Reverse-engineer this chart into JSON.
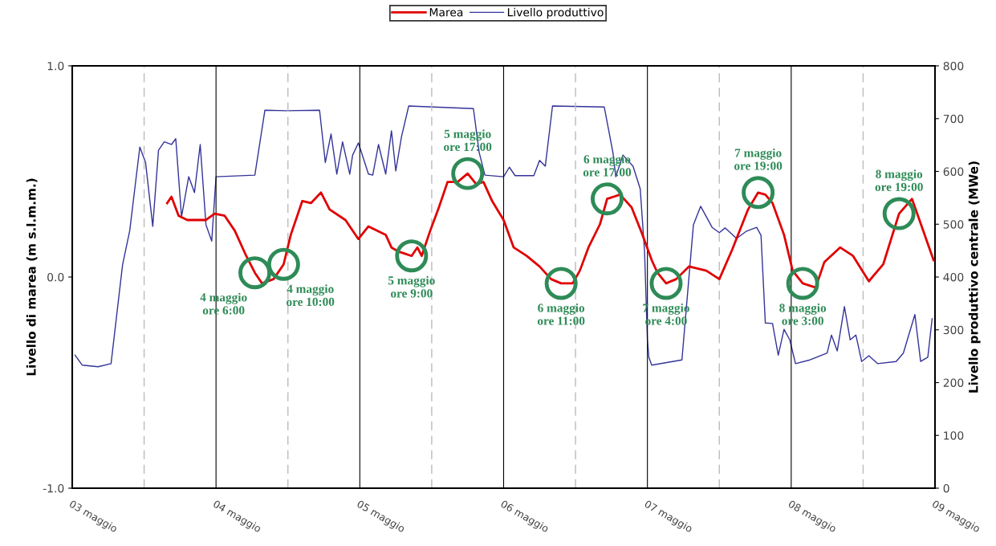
{
  "chart_data": {
    "type": "line",
    "xlim": [
      3,
      9
    ],
    "xticks": [
      {
        "value": 3,
        "label": "03 maggio"
      },
      {
        "value": 3.5,
        "label": null
      },
      {
        "value": 4,
        "label": "04 maggio"
      },
      {
        "value": 4.5,
        "label": null
      },
      {
        "value": 5,
        "label": "05 maggio"
      },
      {
        "value": 5.5,
        "label": null
      },
      {
        "value": 6,
        "label": "06 maggio"
      },
      {
        "value": 6.5,
        "label": null
      },
      {
        "value": 7,
        "label": "07 maggio"
      },
      {
        "value": 7.5,
        "label": null
      },
      {
        "value": 8,
        "label": "08 maggio"
      },
      {
        "value": 8.5,
        "label": null
      },
      {
        "value": 9,
        "label": "09 maggio"
      }
    ],
    "ylim": [
      -1,
      1
    ],
    "yticks": [
      {
        "value": -1,
        "label": "-1.0"
      },
      {
        "value": 0,
        "label": "0.0"
      },
      {
        "value": 1,
        "label": "1.0"
      }
    ],
    "y2lim": [
      0,
      800
    ],
    "y2ticks": [
      0,
      100,
      200,
      300,
      400,
      500,
      600,
      700,
      800
    ],
    "ylabel": "Livello di marea (m s.l.m.m.)",
    "y2label": "Livello produttivo centrale (MWe)",
    "grid": "x",
    "legend": "top",
    "series": [
      {
        "name": "Marea",
        "color": "#e00000",
        "x": [
          3.66,
          3.69,
          3.74,
          3.8,
          3.93,
          3.99,
          4.06,
          4.13,
          4.21,
          4.27,
          4.32,
          4.4,
          4.47,
          4.52,
          4.6,
          4.66,
          4.73,
          4.79,
          4.9,
          4.99,
          5.06,
          5.18,
          5.22,
          5.27,
          5.36,
          5.4,
          5.43,
          5.49,
          5.55,
          5.61,
          5.68,
          5.75,
          5.81,
          5.86,
          5.92,
          6.0,
          6.07,
          6.16,
          6.25,
          6.33,
          6.4,
          6.48,
          6.53,
          6.59,
          6.67,
          6.72,
          6.81,
          6.89,
          6.96,
          7.03,
          7.07,
          7.13,
          7.2,
          7.29,
          7.41,
          7.5,
          7.59,
          7.7,
          7.77,
          7.82,
          7.87,
          7.95,
          8.01,
          8.08,
          8.17,
          8.23,
          8.34,
          8.43,
          8.54,
          8.64,
          8.75,
          8.84,
          8.99
        ],
        "values": [
          0.35,
          0.38,
          0.29,
          0.27,
          0.27,
          0.3,
          0.29,
          0.22,
          0.1,
          0.02,
          -0.03,
          -0.01,
          0.06,
          0.2,
          0.36,
          0.35,
          0.4,
          0.32,
          0.27,
          0.18,
          0.24,
          0.2,
          0.14,
          0.12,
          0.1,
          0.14,
          0.1,
          0.22,
          0.33,
          0.45,
          0.45,
          0.49,
          0.44,
          0.45,
          0.36,
          0.27,
          0.14,
          0.1,
          0.05,
          -0.01,
          -0.03,
          -0.03,
          0.03,
          0.14,
          0.25,
          0.37,
          0.39,
          0.33,
          0.21,
          0.08,
          0.02,
          -0.03,
          -0.01,
          0.05,
          0.03,
          -0.01,
          0.13,
          0.32,
          0.4,
          0.39,
          0.35,
          0.2,
          0.03,
          -0.03,
          -0.05,
          0.07,
          0.14,
          0.1,
          -0.02,
          0.06,
          0.3,
          0.37,
          0.08
        ]
      },
      {
        "name": "Livello produttivo",
        "color": "#333399",
        "axis": "y2",
        "x": [
          3.02,
          3.07,
          3.18,
          3.27,
          3.35,
          3.4,
          3.47,
          3.51,
          3.56,
          3.6,
          3.64,
          3.69,
          3.72,
          3.76,
          3.81,
          3.85,
          3.89,
          3.93,
          3.97,
          4.0,
          4.27,
          4.34,
          4.49,
          4.72,
          4.76,
          4.8,
          4.84,
          4.88,
          4.93,
          4.95,
          4.99,
          5.06,
          5.09,
          5.13,
          5.18,
          5.22,
          5.25,
          5.29,
          5.34,
          5.51,
          5.79,
          5.83,
          5.87,
          6.0,
          6.04,
          6.08,
          6.21,
          6.25,
          6.29,
          6.34,
          6.7,
          6.76,
          6.78,
          6.83,
          6.9,
          6.95,
          6.98,
          7.0,
          7.01,
          7.03,
          7.24,
          7.32,
          7.37,
          7.45,
          7.5,
          7.54,
          7.62,
          7.69,
          7.76,
          7.79,
          7.82,
          7.87,
          7.91,
          7.95,
          7.99,
          8.03,
          8.13,
          8.25,
          8.28,
          8.32,
          8.37,
          8.41,
          8.45,
          8.49,
          8.54,
          8.6,
          8.73,
          8.78,
          8.86,
          8.9,
          8.95,
          8.98
        ],
        "values": [
          252,
          233,
          230,
          236,
          423,
          488,
          646,
          617,
          496,
          640,
          656,
          651,
          662,
          514,
          590,
          560,
          651,
          499,
          468,
          590,
          593,
          716,
          715,
          716,
          617,
          671,
          595,
          656,
          595,
          631,
          654,
          595,
          593,
          651,
          595,
          677,
          601,
          666,
          724,
          722,
          719,
          636,
          593,
          590,
          608,
          592,
          592,
          621,
          610,
          724,
          722,
          636,
          590,
          631,
          610,
          567,
          449,
          281,
          248,
          233,
          243,
          499,
          534,
          494,
          484,
          493,
          473,
          487,
          494,
          479,
          313,
          312,
          252,
          301,
          281,
          236,
          243,
          256,
          290,
          260,
          344,
          281,
          290,
          240,
          251,
          236,
          240,
          256,
          329,
          240,
          248,
          321
        ]
      }
    ],
    "annotations": [
      {
        "text": "4 maggio\nore 6:00",
        "x": 4.27,
        "y": 0.02
      },
      {
        "text": "4 maggio\nore 10:00",
        "x": 4.47,
        "y": 0.06
      },
      {
        "text": "5 maggio\nore 9:00",
        "x": 5.36,
        "y": 0.1
      },
      {
        "text": "5 maggio\nore 17:00",
        "x": 5.75,
        "y": 0.49
      },
      {
        "text": "6 maggio\nore 11:00",
        "x": 6.4,
        "y": -0.03
      },
      {
        "text": "6 maggio\nore 17:00",
        "x": 6.72,
        "y": 0.37
      },
      {
        "text": "7 maggio\nore 4:00",
        "x": 7.13,
        "y": -0.03
      },
      {
        "text": "7 maggio\nore 19:00",
        "x": 7.77,
        "y": 0.4
      },
      {
        "text": "8 maggio\nore 3:00",
        "x": 8.08,
        "y": -0.03
      },
      {
        "text": "8 maggio\nore 19:00",
        "x": 8.75,
        "y": 0.3
      }
    ]
  }
}
